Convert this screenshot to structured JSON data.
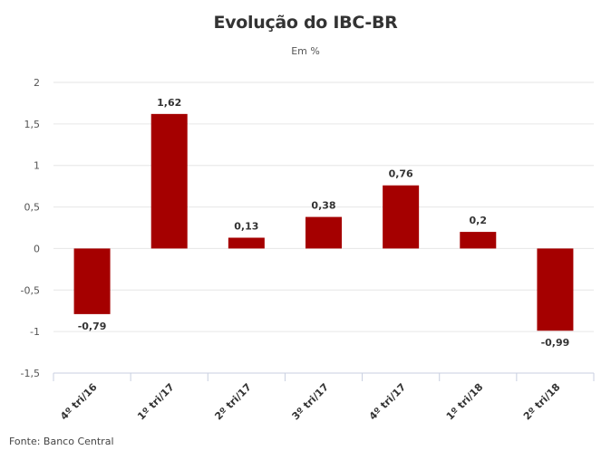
{
  "chart_data": {
    "type": "bar",
    "title": "Evolução do IBC-BR",
    "subtitle": "Em %",
    "xlabel": "",
    "ylabel": "",
    "categories": [
      "4º tri/16",
      "1º tri/17",
      "2º tri/17",
      "3º tri/17",
      "4º tri/17",
      "1º tri/18",
      "2º tri/18"
    ],
    "values": [
      -0.79,
      1.62,
      0.13,
      0.38,
      0.76,
      0.2,
      -0.99
    ],
    "value_labels": [
      "-0,79",
      "1,62",
      "0,13",
      "0,38",
      "0,76",
      "0,2",
      "-0,99"
    ],
    "ylim": [
      -1.5,
      2
    ],
    "yticks": [
      -1.5,
      -1,
      -0.5,
      0,
      0.5,
      1,
      1.5,
      2
    ],
    "ytick_labels": [
      "-1,5",
      "-1",
      "-0,5",
      "0",
      "0,5",
      "1",
      "1,5",
      "2"
    ],
    "grid": true,
    "bar_color": "#a50000",
    "source": "Fonte: Banco Central"
  }
}
